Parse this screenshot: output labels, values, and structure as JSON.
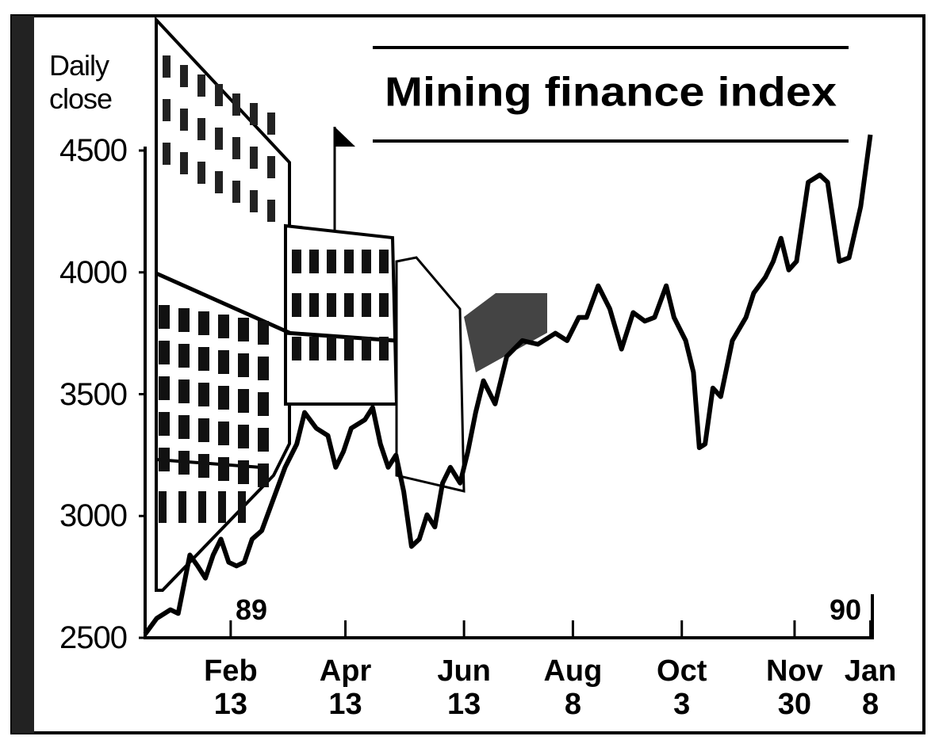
{
  "chart_data": {
    "type": "line",
    "title": "Mining finance index",
    "y_label": "Daily close",
    "annotations": [
      "89",
      "90"
    ],
    "x": [
      0,
      6,
      13,
      17,
      23,
      27,
      31,
      35,
      39,
      43,
      47,
      51,
      55,
      60,
      66,
      72,
      78,
      82,
      88,
      94,
      98,
      102,
      106,
      113,
      117,
      121,
      125,
      129,
      133,
      137,
      141,
      145,
      149,
      153,
      157,
      162,
      166,
      170,
      174,
      180,
      186,
      194,
      202,
      211,
      217,
      223,
      227,
      233,
      239,
      245,
      251,
      257,
      262,
      268,
      272,
      278,
      282,
      285,
      288,
      292,
      296,
      302,
      309,
      313,
      319,
      323,
      327,
      331,
      335,
      341,
      347,
      351,
      357,
      362,
      368,
      373
    ],
    "series": [
      {
        "color": "#000000",
        "values": [
          2515,
          2580,
          2615,
          2600,
          2840,
          2795,
          2745,
          2840,
          2905,
          2810,
          2795,
          2810,
          2905,
          2940,
          3070,
          3200,
          3295,
          3425,
          3360,
          3330,
          3200,
          3265,
          3360,
          3395,
          3445,
          3295,
          3200,
          3250,
          3100,
          2875,
          2905,
          3005,
          2955,
          3135,
          3200,
          3135,
          3265,
          3425,
          3555,
          3460,
          3655,
          3720,
          3705,
          3750,
          3720,
          3815,
          3815,
          3945,
          3850,
          3685,
          3835,
          3800,
          3815,
          3945,
          3815,
          3720,
          3590,
          3280,
          3295,
          3525,
          3490,
          3720,
          3815,
          3915,
          3980,
          4045,
          4140,
          4010,
          4045,
          4370,
          4400,
          4370,
          4045,
          4060,
          4270,
          4565
        ]
      }
    ],
    "xlim": [
      0,
      374
    ],
    "xticks": [
      {
        "value": 44,
        "label": "Feb 13"
      },
      {
        "value": 103,
        "label": "Apr 13"
      },
      {
        "value": 164,
        "label": "Jun 13"
      },
      {
        "value": 220,
        "label": "Aug 8"
      },
      {
        "value": 276,
        "label": "Oct 3"
      },
      {
        "value": 334,
        "label": "Nov 30"
      },
      {
        "value": 373,
        "label": "Jan 8"
      }
    ],
    "ylim": [
      2500,
      4500
    ],
    "yticks": [
      2500,
      3000,
      3500,
      4000,
      4500
    ],
    "grid": false
  }
}
